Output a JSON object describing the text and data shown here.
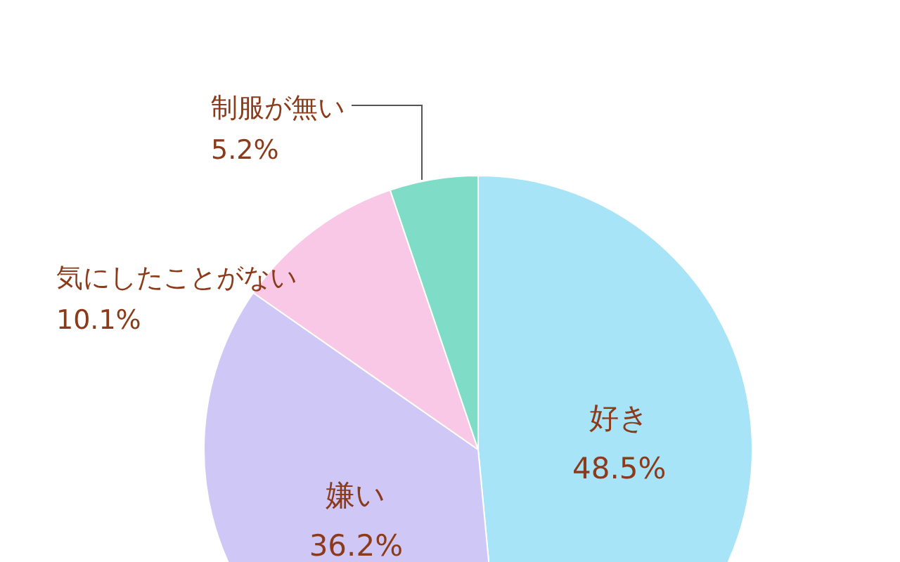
{
  "chart_data": {
    "type": "pie",
    "categories": [
      "好き",
      "嫌い",
      "気にしたことがない",
      "制服が無い"
    ],
    "values": [
      48.5,
      36.2,
      10.1,
      5.2
    ],
    "colors": [
      "#a8e4f8",
      "#cfc8f6",
      "#f9c8e6",
      "#7fdcc6"
    ],
    "value_labels": [
      "48.5%",
      "36.2%",
      "10.1%",
      "5.2%"
    ],
    "legend": false
  }
}
